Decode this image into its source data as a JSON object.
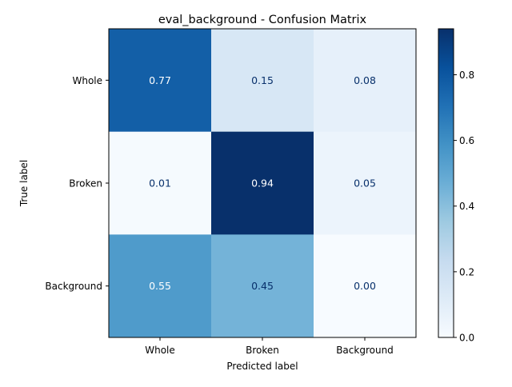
{
  "chart_data": {
    "type": "heatmap",
    "title": "eval_background - Confusion Matrix",
    "xlabel": "Predicted label",
    "ylabel": "True label",
    "x_categories": [
      "Whole",
      "Broken",
      "Background"
    ],
    "y_categories": [
      "Whole",
      "Broken",
      "Background"
    ],
    "values": [
      [
        0.77,
        0.15,
        0.08
      ],
      [
        0.01,
        0.94,
        0.05
      ],
      [
        0.55,
        0.45,
        0.0
      ]
    ],
    "value_labels": [
      [
        "0.77",
        "0.15",
        "0.08"
      ],
      [
        "0.01",
        "0.94",
        "0.05"
      ],
      [
        "0.55",
        "0.45",
        "0.00"
      ]
    ],
    "colormap": "Blues",
    "colorbar": {
      "range": [
        0,
        0.94
      ],
      "ticks": [
        0.0,
        0.2,
        0.4,
        0.6,
        0.8
      ],
      "tick_labels": [
        "0.0",
        "0.2",
        "0.4",
        "0.6",
        "0.8"
      ]
    },
    "colors": {
      "low": "#f7fbff",
      "high": "#08306b",
      "text_dark": "#08306b",
      "text_light": "#ffffff"
    }
  }
}
